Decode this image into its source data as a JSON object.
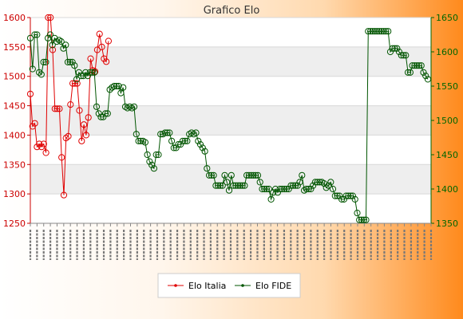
{
  "chart_data": {
    "type": "line",
    "title": "Grafico Elo",
    "y_left": {
      "min": 1250,
      "max": 1600,
      "ticks": [
        1250,
        1300,
        1350,
        1400,
        1450,
        1500,
        1550,
        1600
      ]
    },
    "y_right": {
      "min": 1350,
      "max": 1650,
      "ticks": [
        1350,
        1400,
        1450,
        1500,
        1550,
        1600,
        1650
      ]
    },
    "grid": true,
    "legend_position": "bottom",
    "series": [
      {
        "name": "Elo Italia",
        "axis": "left",
        "color": "#e00000",
        "values": [
          1470,
          1415,
          1420,
          1380,
          1385,
          1380,
          1385,
          1370,
          1600,
          1600,
          1545,
          1445,
          1445,
          1445,
          1362,
          1298,
          1395,
          1398,
          1452,
          1488,
          1488,
          1488,
          1442,
          1390,
          1418,
          1400,
          1430,
          1530,
          1510,
          1508,
          1545,
          1572,
          1550,
          1530,
          1525,
          1560
        ]
      },
      {
        "name": "Elo FIDE",
        "axis": "right",
        "color": "#005500",
        "values": [
          1620,
          1575,
          1625,
          1625,
          1570,
          1567,
          1585,
          1585,
          1620,
          1625,
          1610,
          1620,
          1615,
          1617,
          1615,
          1605,
          1610,
          1585,
          1585,
          1585,
          1580,
          1560,
          1570,
          1565,
          1565,
          1570,
          1565,
          1570,
          1570,
          1570,
          1520,
          1510,
          1505,
          1505,
          1510,
          1510,
          1545,
          1548,
          1550,
          1550,
          1550,
          1540,
          1548,
          1520,
          1518,
          1520,
          1518,
          1520,
          1480,
          1470,
          1470,
          1470,
          1468,
          1450,
          1440,
          1435,
          1430,
          1450,
          1450,
          1480,
          1480,
          1482,
          1482,
          1482,
          1470,
          1460,
          1460,
          1465,
          1465,
          1470,
          1470,
          1470,
          1480,
          1482,
          1480,
          1482,
          1470,
          1465,
          1460,
          1455,
          1430,
          1420,
          1420,
          1420,
          1405,
          1405,
          1405,
          1405,
          1420,
          1410,
          1398,
          1420,
          1405,
          1405,
          1405,
          1405,
          1405,
          1405,
          1420,
          1420,
          1420,
          1420,
          1420,
          1420,
          1410,
          1400,
          1400,
          1400,
          1400,
          1385,
          1395,
          1400,
          1395,
          1400,
          1400,
          1400,
          1400,
          1400,
          1405,
          1405,
          1405,
          1405,
          1410,
          1420,
          1398,
          1400,
          1400,
          1400,
          1405,
          1410,
          1410,
          1410,
          1410,
          1408,
          1402,
          1405,
          1410,
          1400,
          1390,
          1390,
          1390,
          1385,
          1385,
          1390,
          1390,
          1390,
          1390,
          1385,
          1365,
          1355,
          1355,
          1355,
          1355,
          1630,
          1630,
          1630,
          1630,
          1630,
          1630,
          1630,
          1630,
          1630,
          1630,
          1600,
          1605,
          1605,
          1605,
          1600,
          1595,
          1595,
          1595,
          1570,
          1570,
          1580,
          1580,
          1580,
          1580,
          1580,
          1570,
          1565,
          1560
        ]
      }
    ]
  }
}
